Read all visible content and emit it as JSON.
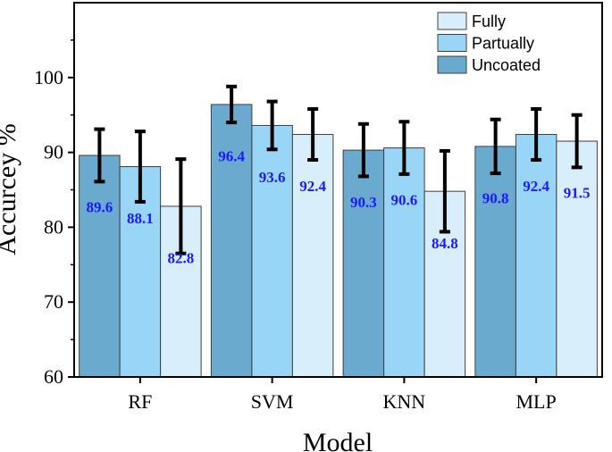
{
  "chart_data": {
    "type": "bar",
    "xlabel": "Model",
    "ylabel": "Accurcey %",
    "ylim": [
      60,
      110
    ],
    "yticks": [
      60,
      70,
      80,
      90,
      100
    ],
    "categories": [
      "RF",
      "SVM",
      "KNN",
      "MLP"
    ],
    "series": [
      {
        "name": "Uncoated",
        "color": "#6aaacf",
        "values": [
          89.6,
          96.4,
          90.3,
          90.8
        ],
        "errors": [
          3.5,
          2.4,
          3.5,
          3.6
        ]
      },
      {
        "name": "Partually",
        "color": "#99d5f7",
        "values": [
          88.1,
          93.6,
          90.6,
          92.4
        ],
        "errors": [
          4.7,
          3.2,
          3.5,
          3.4
        ]
      },
      {
        "name": "Fully",
        "color": "#d9eefb",
        "values": [
          82.8,
          92.4,
          84.8,
          91.5
        ],
        "errors": [
          6.3,
          3.4,
          5.4,
          3.5
        ]
      }
    ],
    "legend_position": "top-right",
    "legend_order": [
      "Fully",
      "Partually",
      "Uncoated"
    ],
    "data_label_color": "#1a1aff",
    "grid": false
  }
}
